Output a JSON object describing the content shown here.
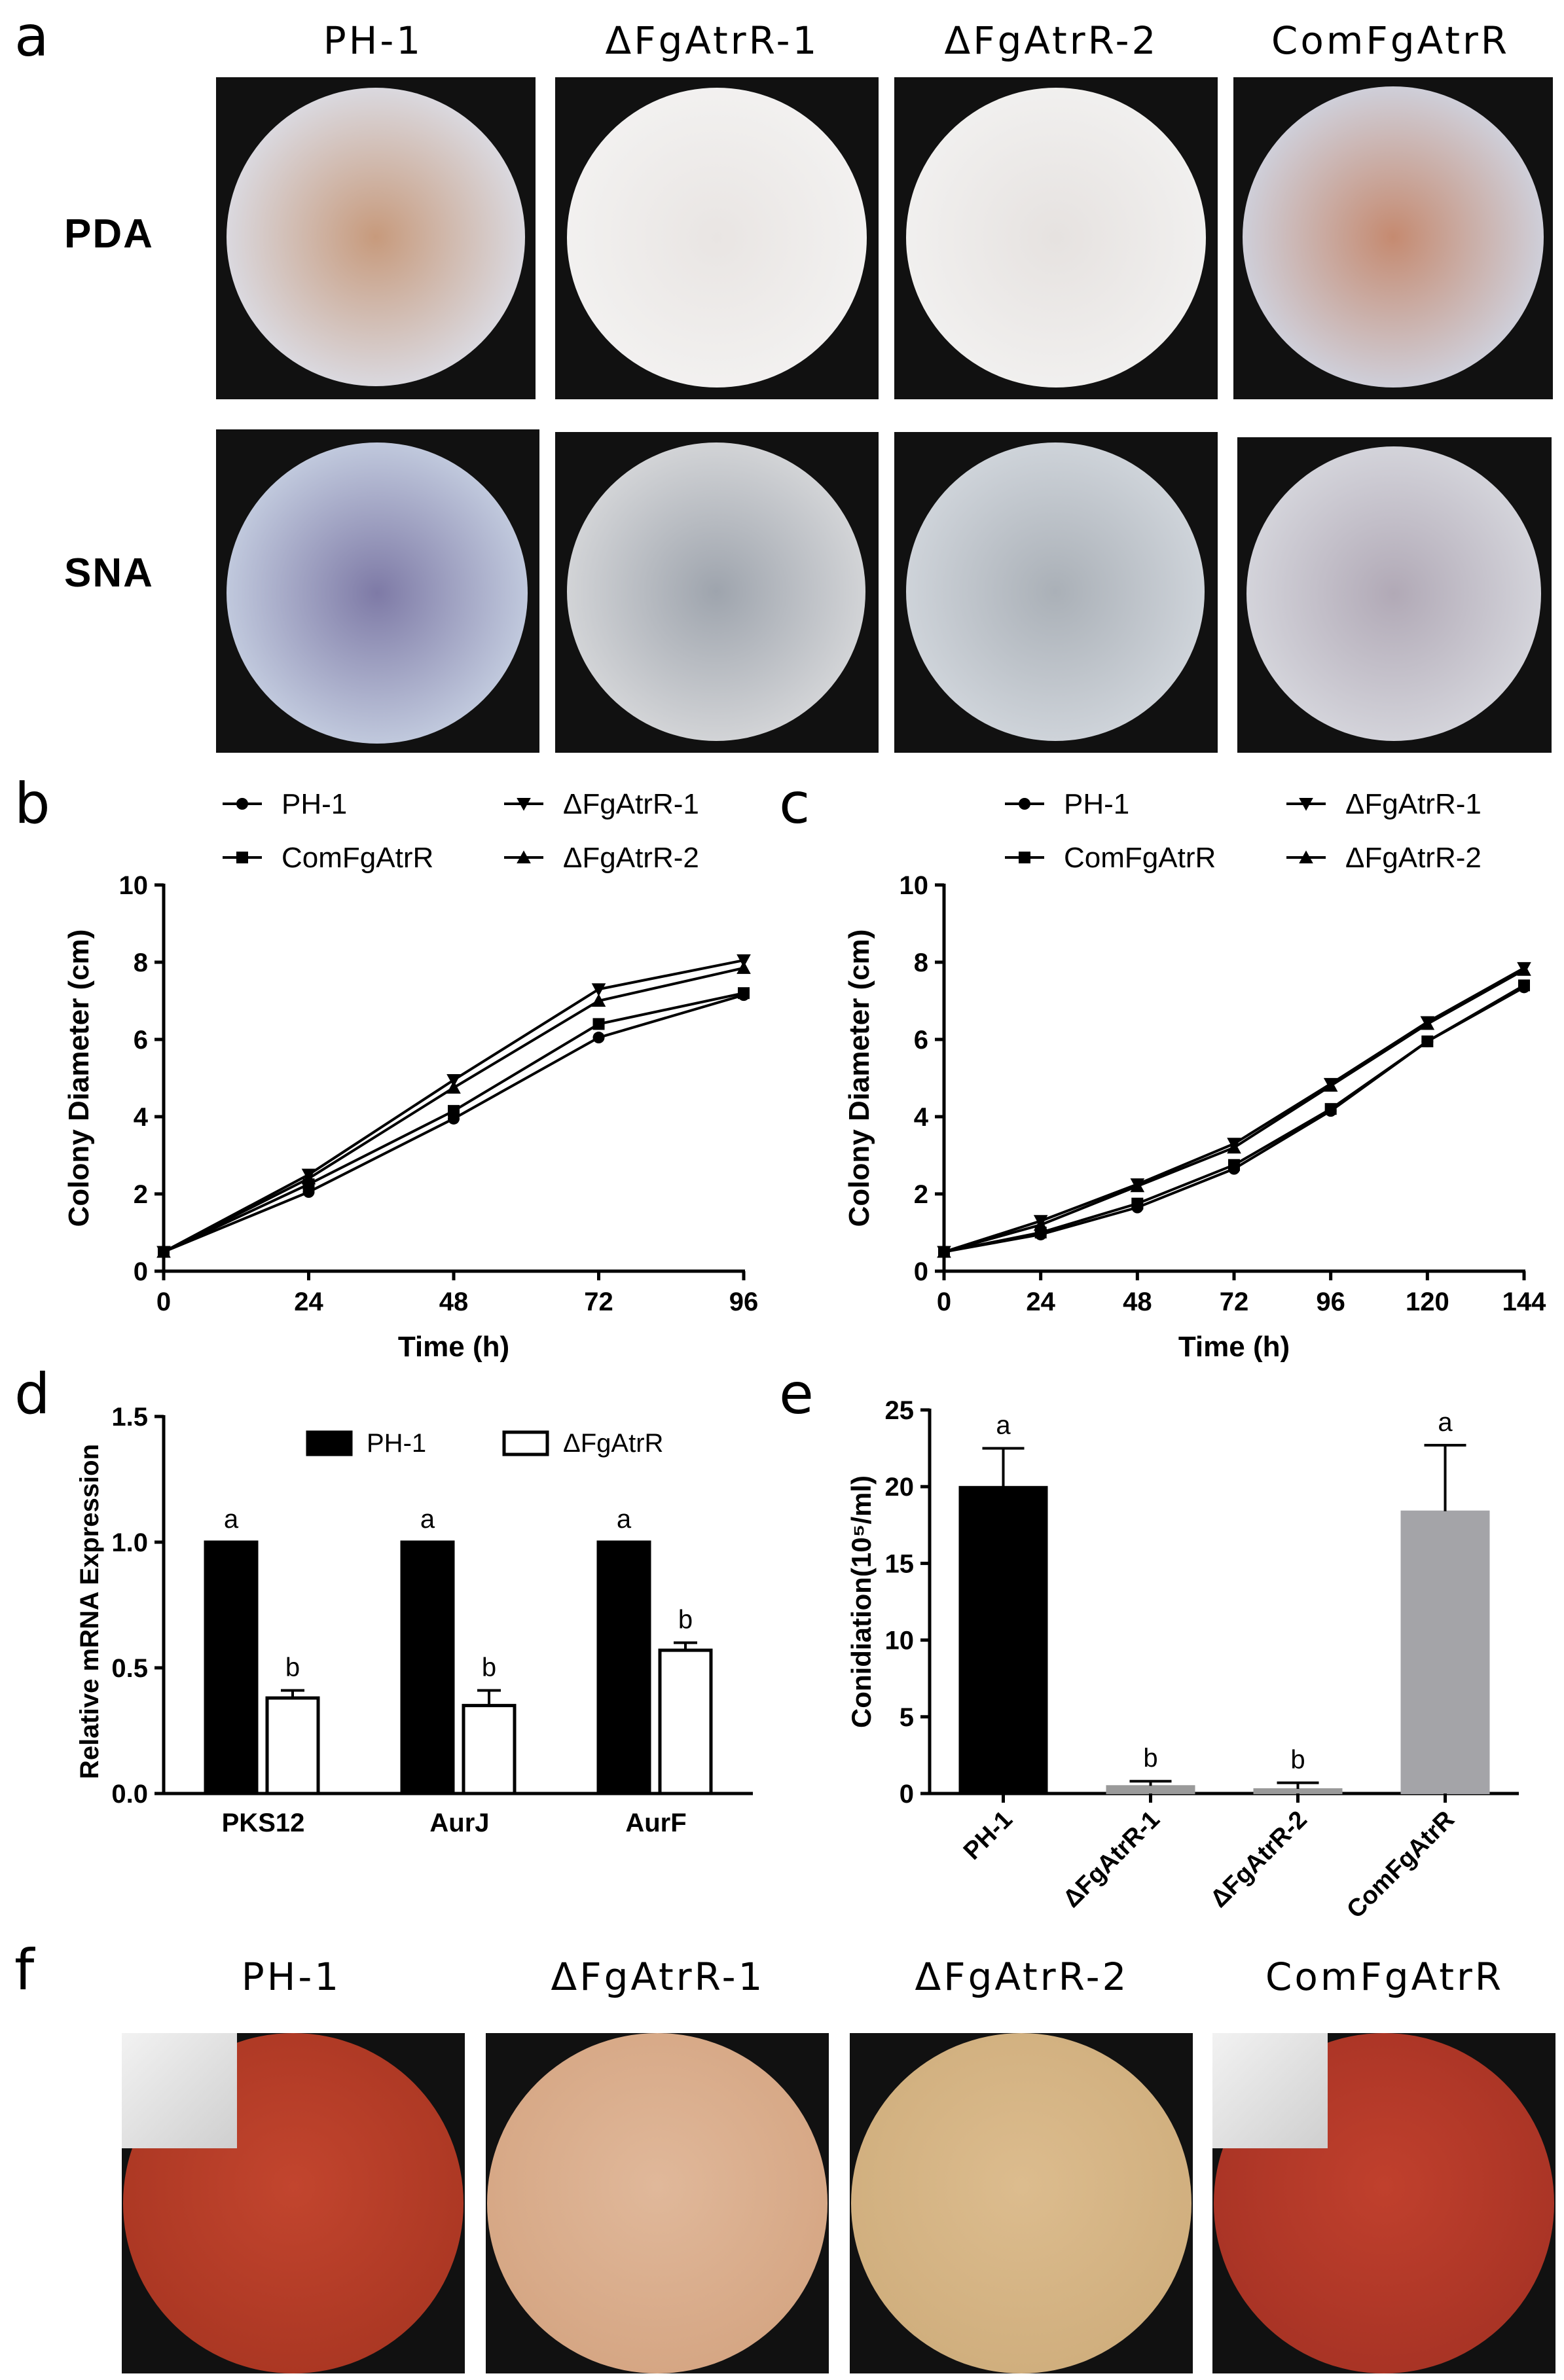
{
  "panel_a": {
    "letter": "a",
    "columns": [
      "PH-1",
      "ΔFgAtrR-1",
      "ΔFgAtrR-2",
      "ComFgAtrR"
    ],
    "rows": [
      "PDA",
      "SNA"
    ],
    "colors": {
      "pda_center": [
        "#c79a7c",
        "#e9e5e3",
        "#e6e2e0",
        "#c58a70"
      ],
      "pda_edge": [
        "#dcdfe9",
        "#f3f2f1",
        "#f2f1f0",
        "#d0d6e4"
      ],
      "sna_center": [
        "#7e7aa6",
        "#9ea4ad",
        "#aab0b7",
        "#b1a9b6"
      ],
      "sna_edge": [
        "#c9d3e4",
        "#d9dadc",
        "#d3d8de",
        "#d8d9df"
      ]
    }
  },
  "panel_b": {
    "letter": "b",
    "legend": [
      "PH-1",
      "ΔFgAtrR-1",
      "ComFgAtrR",
      "ΔFgAtrR-2"
    ]
  },
  "panel_c": {
    "letter": "c",
    "legend": [
      "PH-1",
      "ΔFgAtrR-1",
      "ComFgAtrR",
      "ΔFgAtrR-2"
    ]
  },
  "panel_d": {
    "letter": "d",
    "legend": [
      "PH-1",
      "ΔFgAtrR"
    ]
  },
  "panel_e": {
    "letter": "e"
  },
  "panel_f": {
    "letter": "f",
    "columns": [
      "PH-1",
      "ΔFgAtrR-1",
      "ΔFgAtrR-2",
      "ComFgAtrR"
    ],
    "colors": {
      "center": [
        "#c2452e",
        "#e0b89a",
        "#dcbc8e",
        "#c0402d"
      ],
      "edge": [
        "#a3321f",
        "#d2a07c",
        "#ccaa78",
        "#a02f22"
      ]
    }
  },
  "chart_data": [
    {
      "id": "b",
      "type": "line",
      "xlabel": "Time (h)",
      "ylabel": "Colony Diameter (cm)",
      "x": [
        0,
        24,
        48,
        72,
        96
      ],
      "xticks": [
        "0",
        "24",
        "48",
        "72",
        "96"
      ],
      "yticks": [
        "0",
        "2",
        "4",
        "6",
        "8",
        "10"
      ],
      "xlim": [
        0,
        96
      ],
      "ylim": [
        0,
        10
      ],
      "series": [
        {
          "name": "PH-1",
          "marker": "circle",
          "values": [
            0.5,
            2.05,
            3.95,
            6.05,
            7.15
          ]
        },
        {
          "name": "ComFgAtrR",
          "marker": "square",
          "values": [
            0.5,
            2.25,
            4.15,
            6.4,
            7.2
          ]
        },
        {
          "name": "ΔFgAtrR-1",
          "marker": "triangle-down",
          "values": [
            0.5,
            2.5,
            4.95,
            7.3,
            8.05
          ]
        },
        {
          "name": "ΔFgAtrR-2",
          "marker": "triangle-up",
          "values": [
            0.5,
            2.4,
            4.75,
            7.0,
            7.85
          ]
        }
      ]
    },
    {
      "id": "c",
      "type": "line",
      "xlabel": "Time (h)",
      "ylabel": "Colony Diameter (cm)",
      "x": [
        0,
        24,
        48,
        72,
        96,
        120,
        144
      ],
      "xticks": [
        "0",
        "24",
        "48",
        "72",
        "96",
        "120",
        "144"
      ],
      "yticks": [
        "0",
        "2",
        "4",
        "6",
        "8",
        "10"
      ],
      "xlim": [
        0,
        144
      ],
      "ylim": [
        0,
        10
      ],
      "series": [
        {
          "name": "PH-1",
          "marker": "circle",
          "values": [
            0.5,
            0.95,
            1.65,
            2.65,
            4.15,
            5.95,
            7.35
          ]
        },
        {
          "name": "ComFgAtrR",
          "marker": "square",
          "values": [
            0.5,
            1.0,
            1.75,
            2.75,
            4.2,
            5.95,
            7.4
          ]
        },
        {
          "name": "ΔFgAtrR-1",
          "marker": "triangle-down",
          "values": [
            0.5,
            1.3,
            2.25,
            3.3,
            4.85,
            6.45,
            7.85
          ]
        },
        {
          "name": "ΔFgAtrR-2",
          "marker": "triangle-up",
          "values": [
            0.5,
            1.2,
            2.2,
            3.2,
            4.8,
            6.4,
            7.8
          ]
        }
      ]
    },
    {
      "id": "d",
      "type": "bar",
      "ylabel": "Relative mRNA Expression",
      "categories": [
        "PKS12",
        "AurJ",
        "AurF"
      ],
      "yticks": [
        "0.0",
        "0.5",
        "1.0",
        "1.5"
      ],
      "ylim": [
        0,
        1.5
      ],
      "series": [
        {
          "name": "PH-1",
          "fill": "#000000",
          "values": [
            1.0,
            1.0,
            1.0
          ],
          "errors": [
            0,
            0,
            0
          ],
          "letters": [
            "a",
            "a",
            "a"
          ]
        },
        {
          "name": "ΔFgAtrR",
          "fill": "#ffffff",
          "values": [
            0.38,
            0.35,
            0.57
          ],
          "errors": [
            0.03,
            0.06,
            0.03
          ],
          "letters": [
            "b",
            "b",
            "b"
          ]
        }
      ]
    },
    {
      "id": "e",
      "type": "bar",
      "ylabel": "Conidiation(10⁵/ml)",
      "categories": [
        "PH-1",
        "ΔFgAtrR-1",
        "ΔFgAtrR-2",
        "ComFgAtrR"
      ],
      "values": [
        20.0,
        0.5,
        0.3,
        18.4
      ],
      "errors": [
        2.5,
        0.3,
        0.4,
        4.3
      ],
      "letters": [
        "a",
        "b",
        "b",
        "a"
      ],
      "fills": [
        "#000000",
        "#9a9a9a",
        "#9a9a9a",
        "#a4a4a8"
      ],
      "yticks": [
        "0",
        "5",
        "10",
        "15",
        "20",
        "25"
      ],
      "ylim": [
        0,
        25
      ]
    }
  ]
}
